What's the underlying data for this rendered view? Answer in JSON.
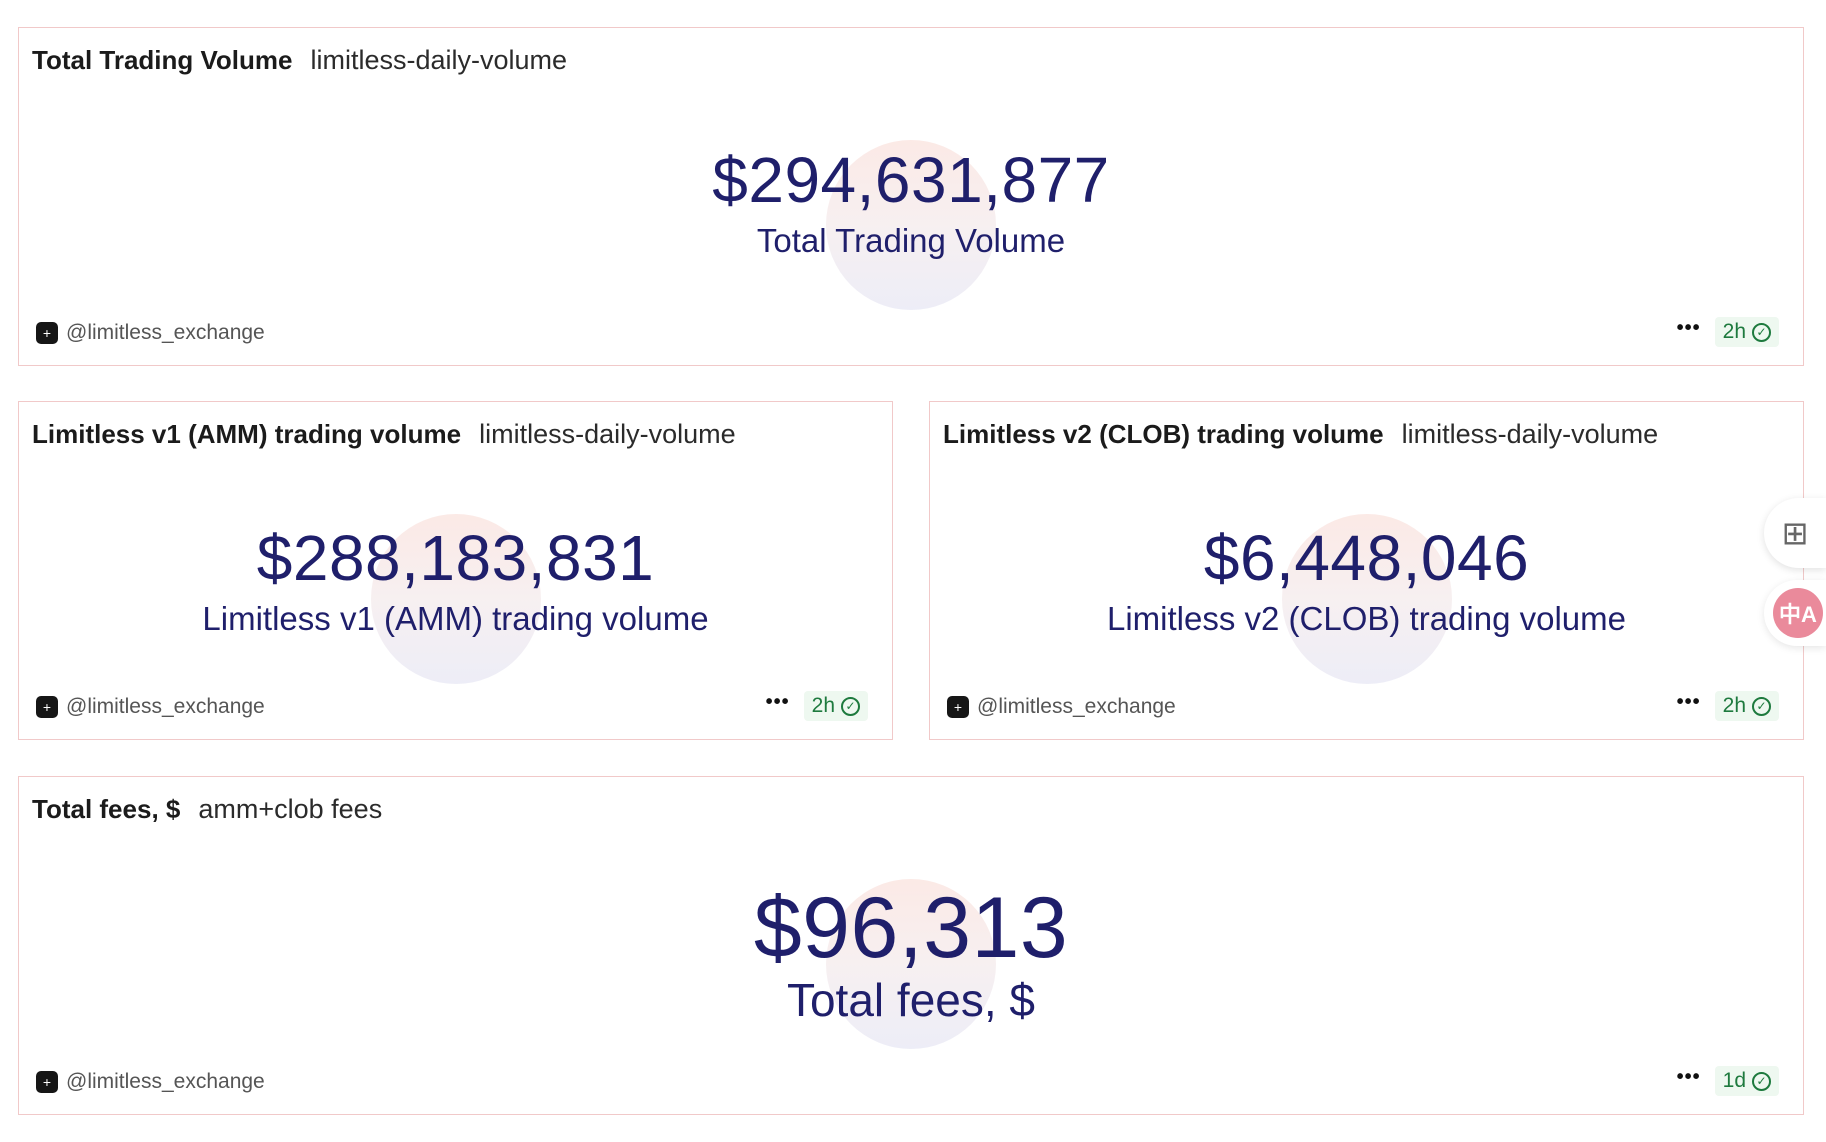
{
  "cards": [
    {
      "title": "Total Trading Volume",
      "subtitle": "limitless-daily-volume",
      "value": "$294,631,877",
      "label": "Total Trading Volume",
      "author": "@limitless_exchange",
      "more": "•••",
      "age": "2h"
    },
    {
      "title": "Limitless v1 (AMM) trading volume",
      "subtitle": "limitless-daily-volume",
      "value": "$288,183,831",
      "label": "Limitless v1 (AMM) trading volume",
      "author": "@limitless_exchange",
      "more": "•••",
      "age": "2h"
    },
    {
      "title": "Limitless v2 (CLOB) trading volume",
      "subtitle": "limitless-daily-volume",
      "value": "$6,448,046",
      "label": "Limitless v2 (CLOB) trading volume",
      "author": "@limitless_exchange",
      "more": "•••",
      "age": "2h"
    },
    {
      "title": "Total fees, $",
      "subtitle": "amm+clob fees",
      "value": "$96,313",
      "label": "Total fees, $",
      "author": "@limitless_exchange",
      "more": "•••",
      "age": "1d"
    }
  ],
  "side_widgets": {
    "grid_icon": "apps-add-icon",
    "translate_icon": "translate-icon",
    "translate_glyph": "中A"
  },
  "colors": {
    "metric": "#1f1f6b",
    "badge_text": "#1e7a3e",
    "badge_bg": "#eef8f0",
    "card_border": "#f1c9c9"
  }
}
